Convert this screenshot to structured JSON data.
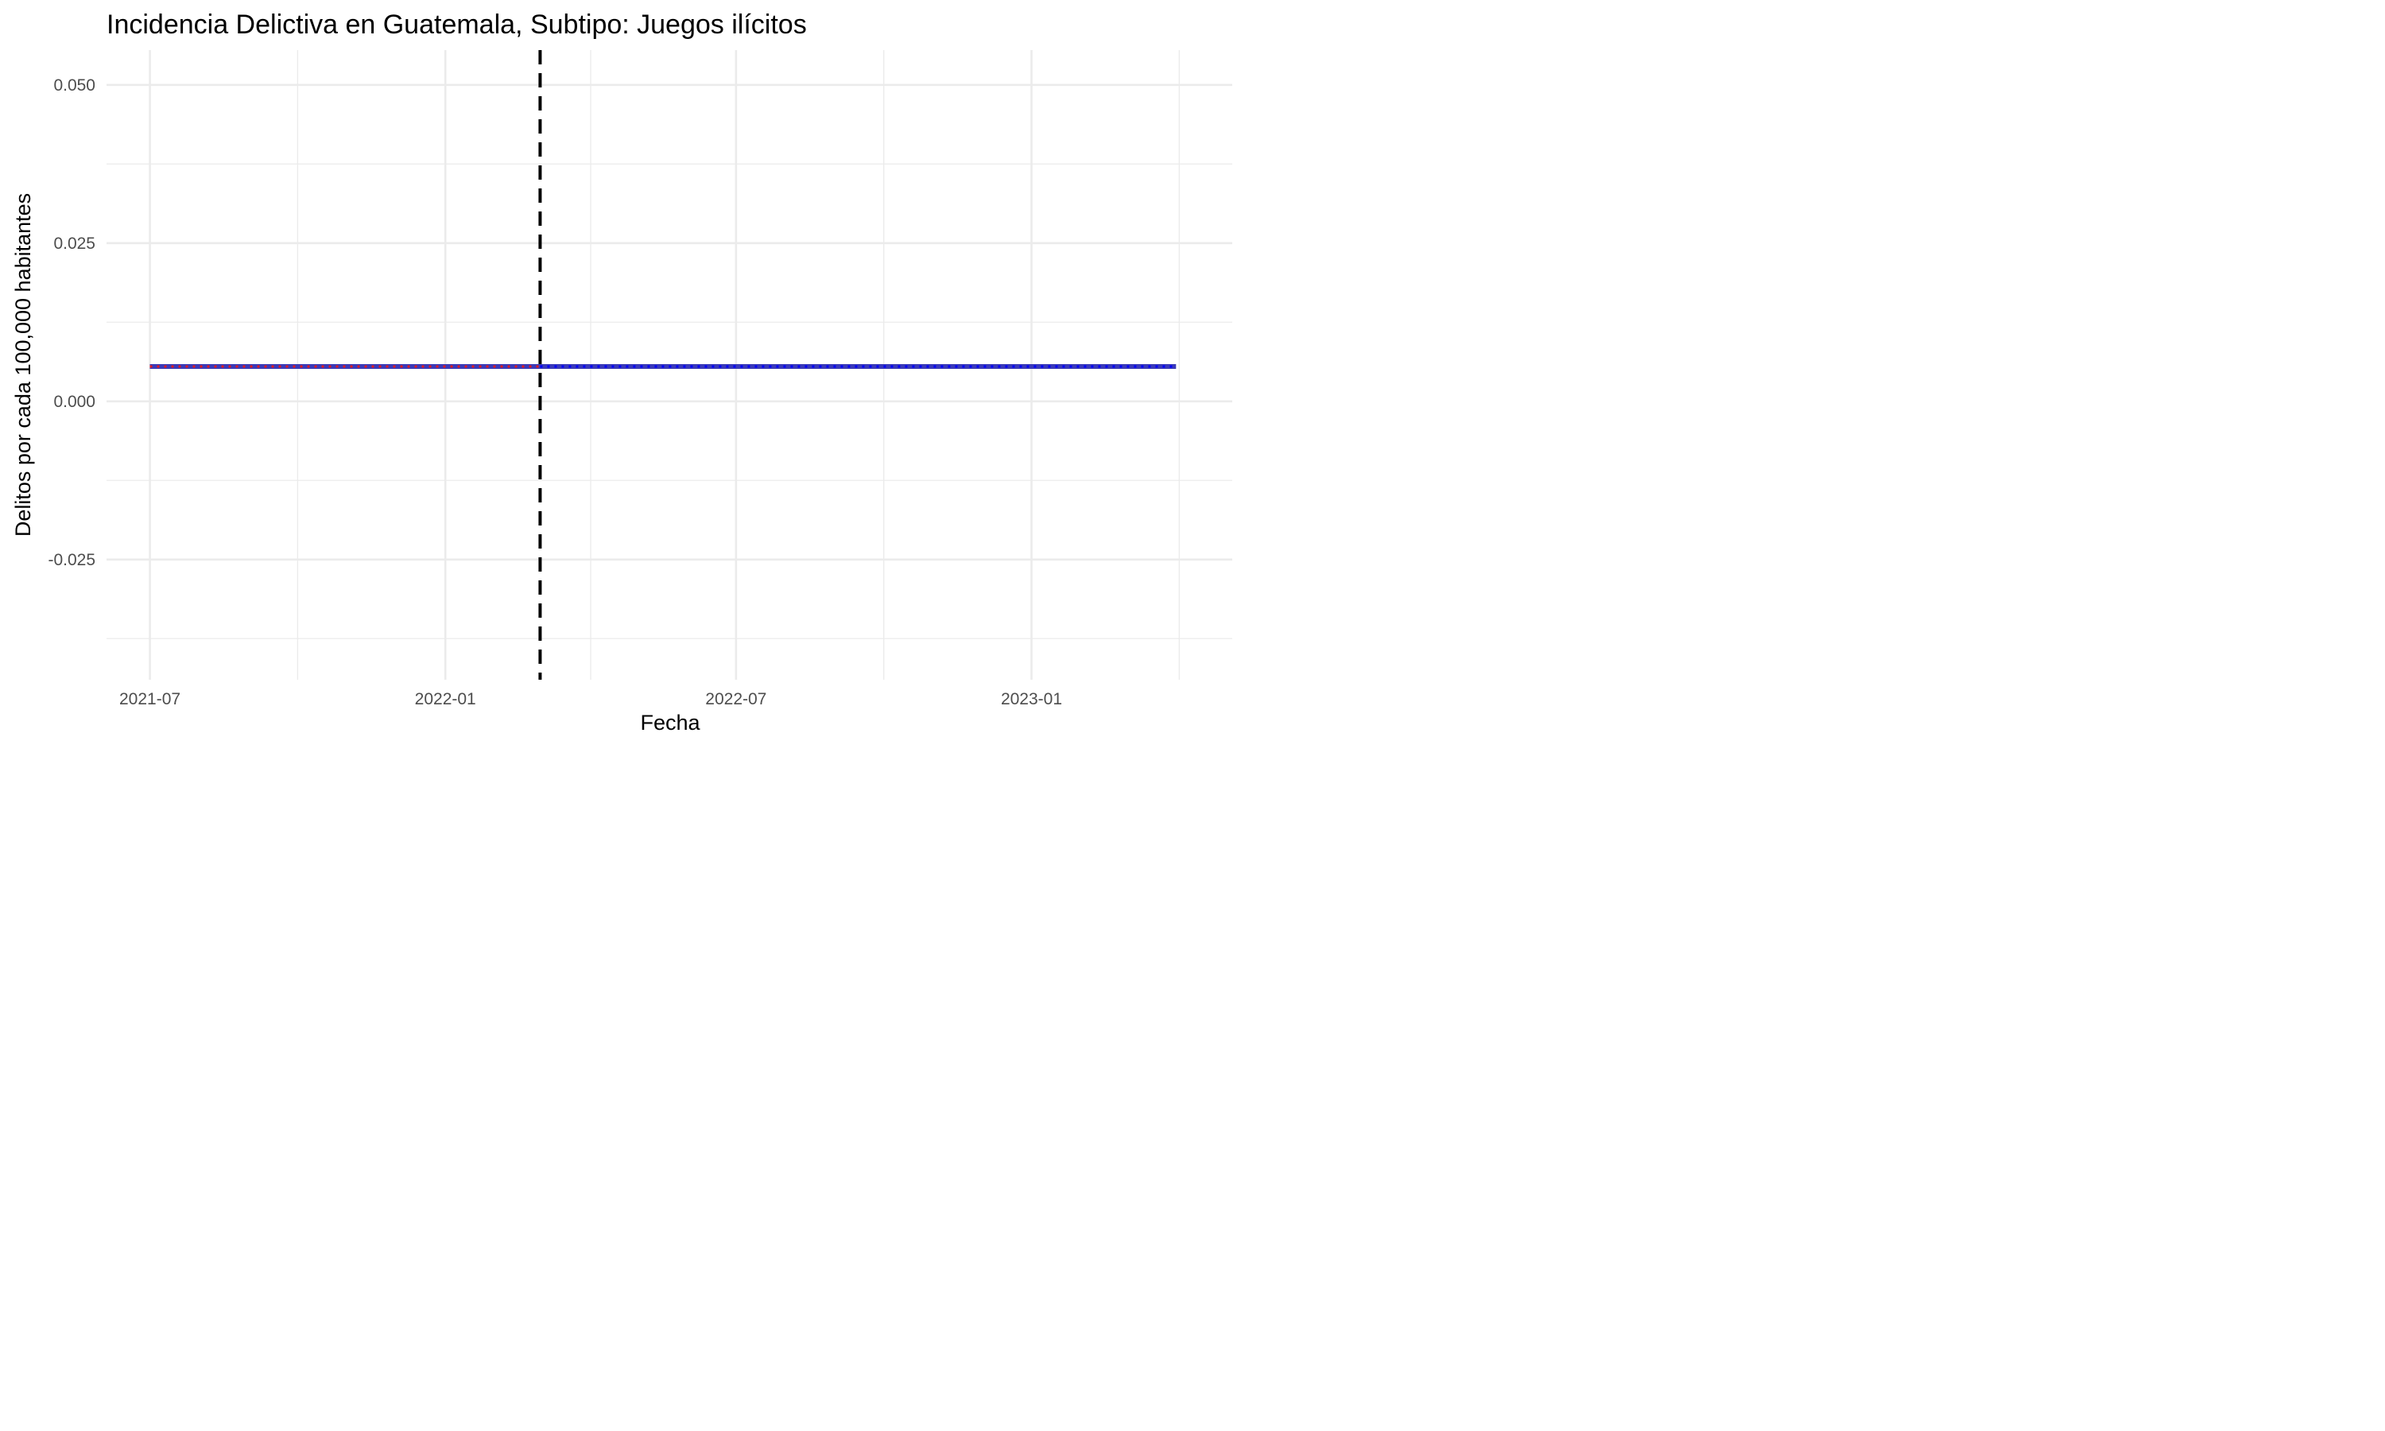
{
  "chart_data": {
    "type": "line",
    "title": "Incidencia Delictiva en Guatemala, Subtipo: Juegos ilícitos",
    "xlabel": "Fecha",
    "ylabel": "Delitos por cada 100,000 habitantes",
    "x_ticks": [
      "2021-07",
      "2022-01",
      "2022-07",
      "2023-01"
    ],
    "y_ticks": [
      "-0.025",
      "0.000",
      "0.025",
      "0.050"
    ],
    "ylim": [
      -0.044,
      0.0555
    ],
    "xlim": [
      "2021-06-04",
      "2023-05-06"
    ],
    "grid": true,
    "legend": "none",
    "series": [
      {
        "style": "solid",
        "color": "#3a3ab8",
        "x": [
          "2021-07-01",
          "2023-04-01"
        ],
        "y": [
          0.0055,
          0.0055
        ]
      },
      {
        "style": "dotted",
        "color": "#e41a1c",
        "x": [
          "2021-07-01",
          "2022-03-01"
        ],
        "y": [
          0.0055,
          0.0055
        ]
      },
      {
        "style": "dotted",
        "color": "#0000ff",
        "x": [
          "2022-03-01",
          "2023-04-01"
        ],
        "y": [
          0.0055,
          0.0055
        ]
      }
    ],
    "vline": {
      "x": "2022-03-01",
      "style": "dashed",
      "color": "#000000"
    }
  }
}
